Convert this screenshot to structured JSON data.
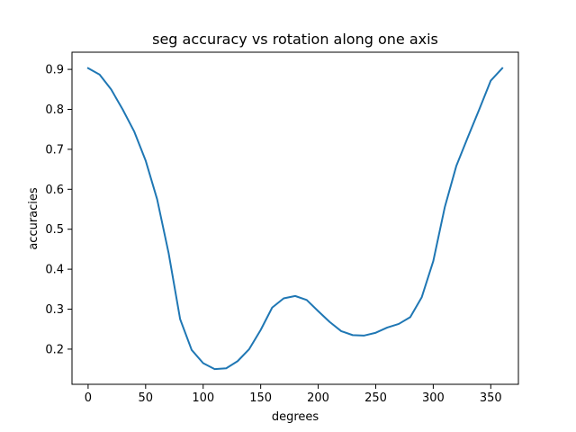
{
  "chart_data": {
    "type": "line",
    "title": "seg accuracy vs rotation along one axis",
    "xlabel": "degrees",
    "ylabel": "accuracies",
    "xlim": [
      -14,
      374
    ],
    "ylim": [
      0.112,
      0.943
    ],
    "xticks": [
      0,
      50,
      100,
      150,
      200,
      250,
      300,
      350
    ],
    "yticks": [
      0.2,
      0.3,
      0.4,
      0.5,
      0.6,
      0.7,
      0.8,
      0.9
    ],
    "ytick_labels": [
      "0.2",
      "0.3",
      "0.4",
      "0.5",
      "0.6",
      "0.7",
      "0.8",
      "0.9"
    ],
    "grid": false,
    "line_color": "#1f77b4",
    "series": [
      {
        "x": [
          0,
          10,
          20,
          30,
          40,
          50,
          60,
          70,
          80,
          90,
          100,
          110,
          120,
          130,
          140,
          150,
          160,
          170,
          180,
          190,
          200,
          210,
          220,
          230,
          240,
          250,
          260,
          270,
          280,
          290,
          300,
          310,
          320,
          330,
          340,
          350,
          360
        ],
        "values": [
          0.903,
          0.887,
          0.85,
          0.8,
          0.745,
          0.672,
          0.575,
          0.44,
          0.275,
          0.198,
          0.165,
          0.15,
          0.152,
          0.17,
          0.2,
          0.248,
          0.304,
          0.327,
          0.333,
          0.323,
          0.295,
          0.268,
          0.245,
          0.235,
          0.234,
          0.241,
          0.254,
          0.263,
          0.28,
          0.33,
          0.42,
          0.555,
          0.658,
          0.73,
          0.8,
          0.872,
          0.903
        ]
      }
    ]
  }
}
